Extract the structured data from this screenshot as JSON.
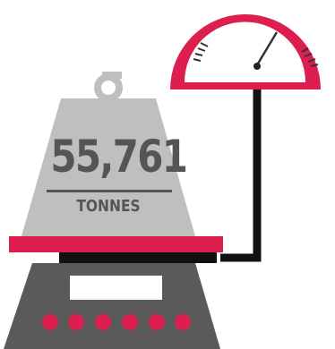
{
  "weight": {
    "value": "55,761",
    "unit": "TONNES"
  },
  "icons": {
    "weight_block": "weight-block-icon",
    "gauge": "gauge-icon",
    "scale_base": "scale-base-icon"
  },
  "colors": {
    "crimson": "#dc1f4e",
    "weight_grey": "#c0bfbf",
    "text_dark": "#555555",
    "base_dark": "#5a5a5a",
    "outline": "#111111",
    "gauge_face": "#ffffff"
  }
}
